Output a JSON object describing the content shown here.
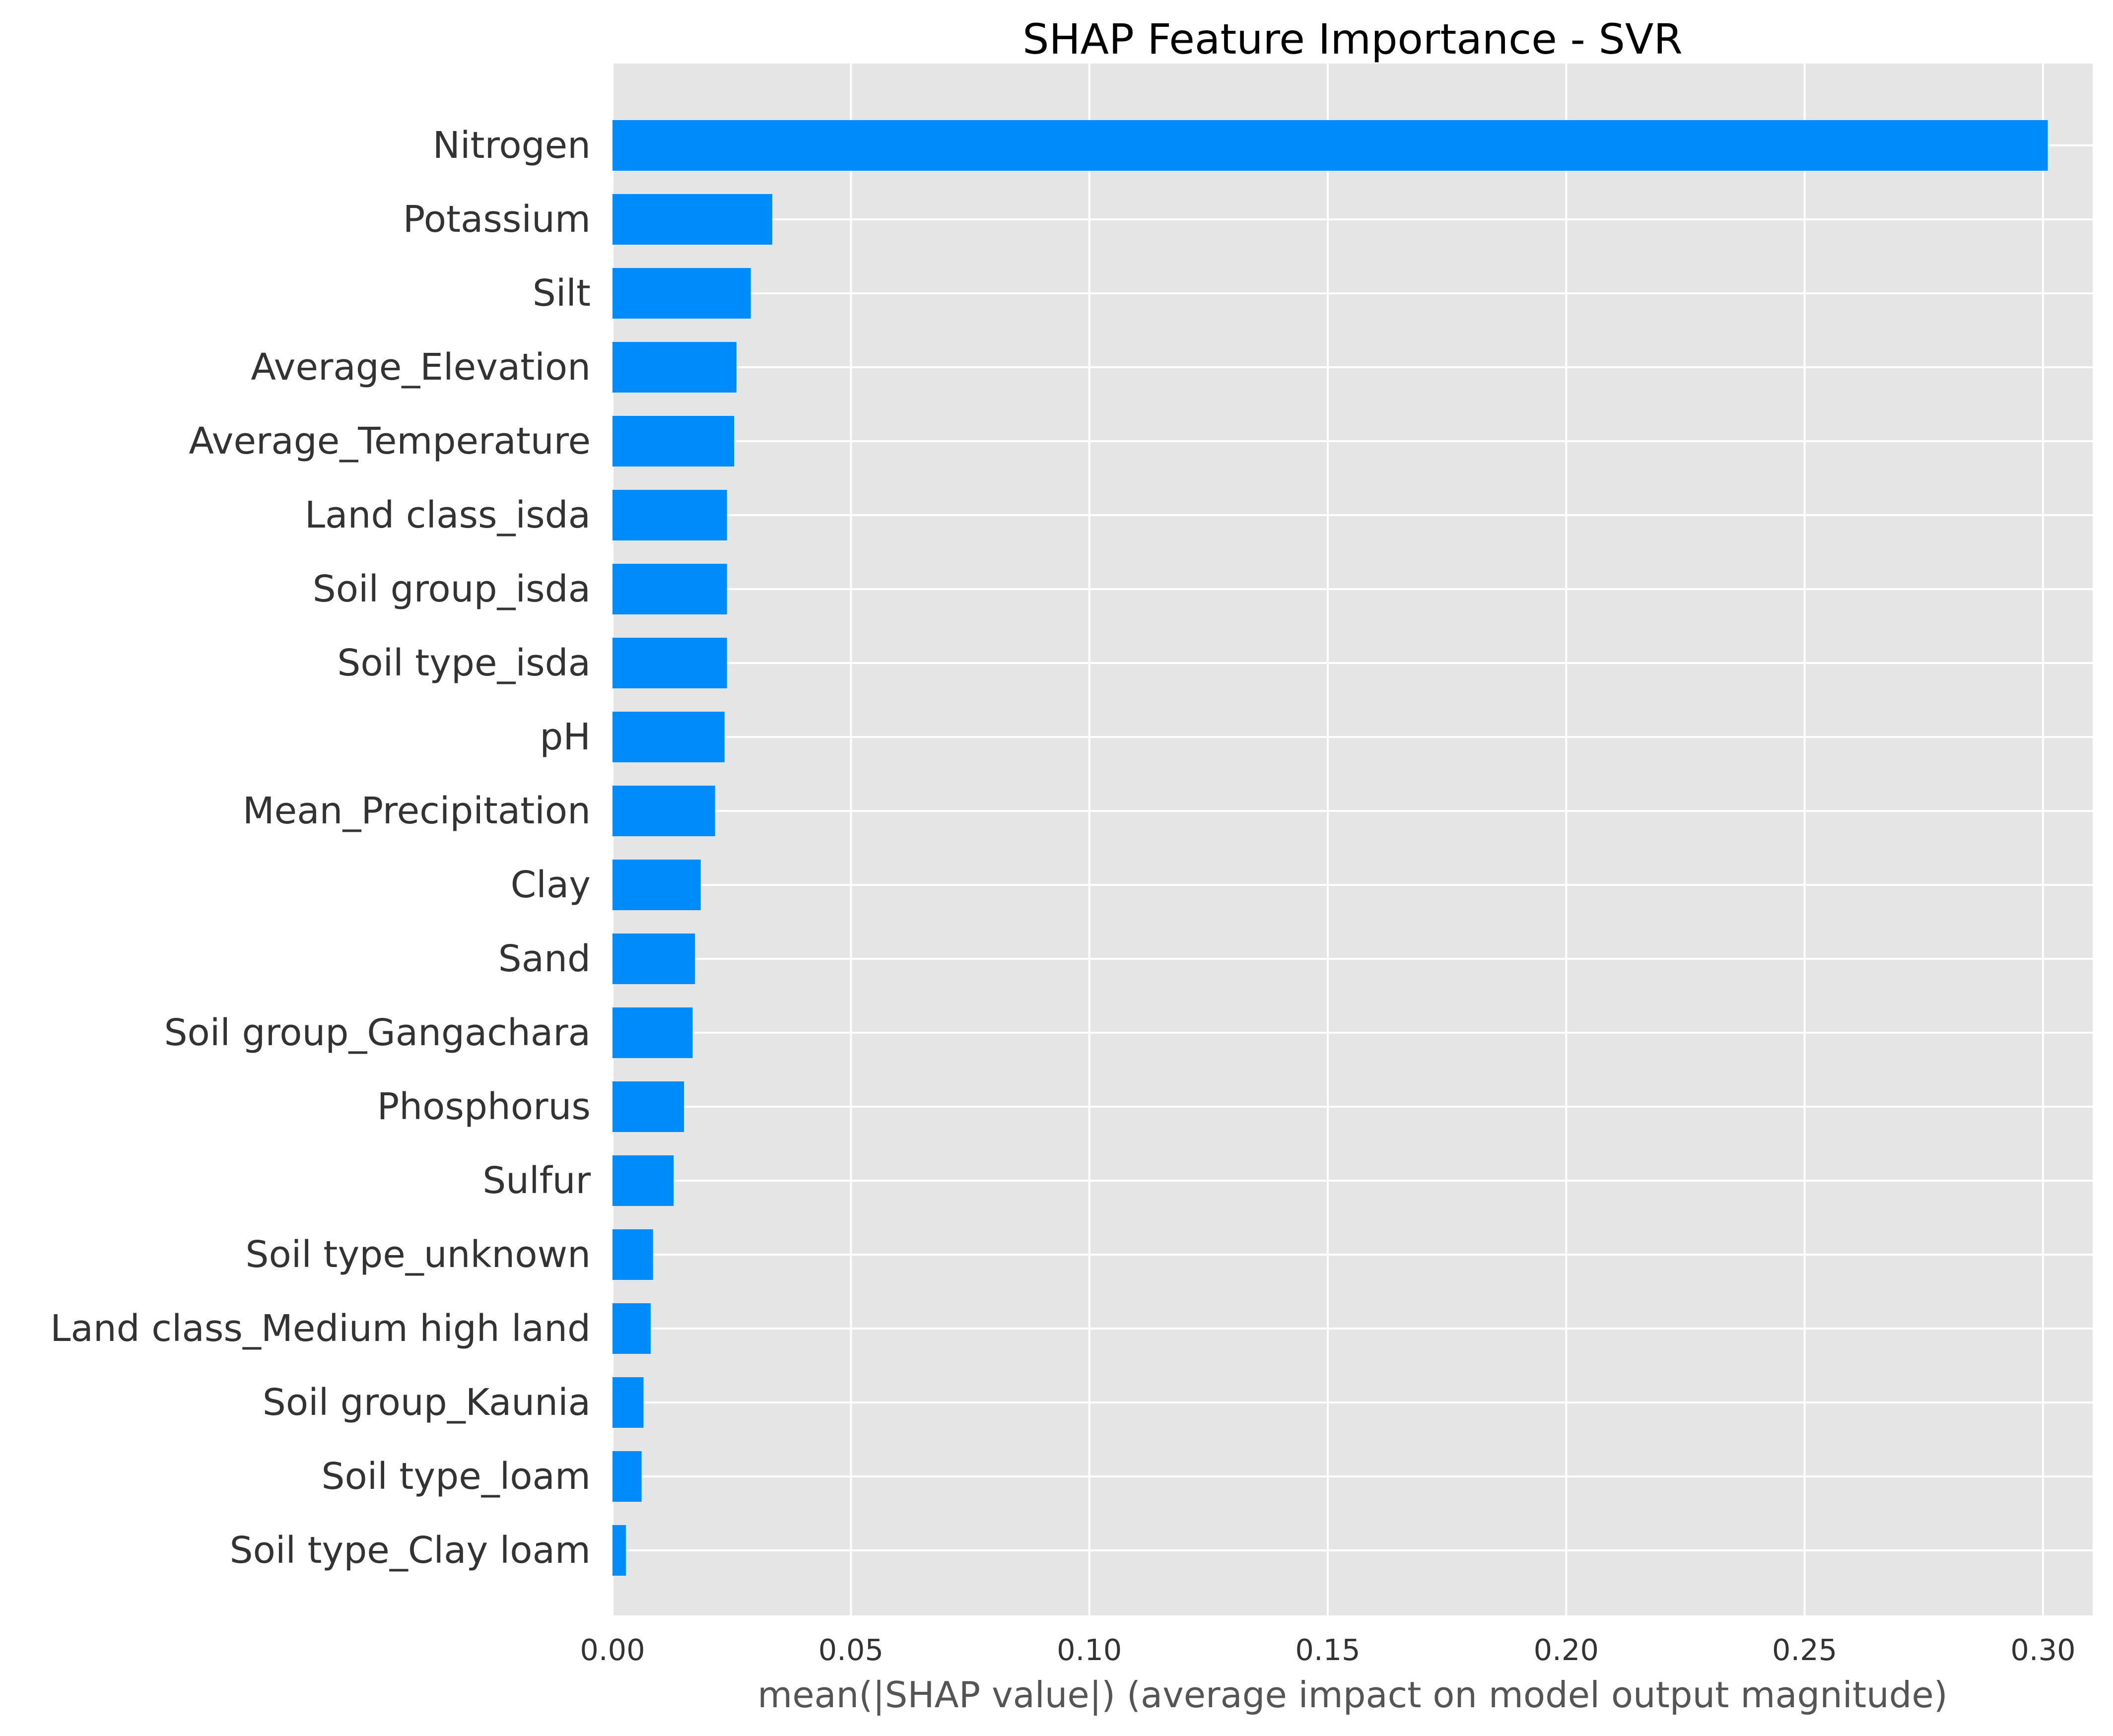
{
  "chart_data": {
    "type": "bar",
    "orientation": "horizontal",
    "title": "SHAP Feature Importance - SVR",
    "xlabel": "mean(|SHAP value|) (average impact on model output magnitude)",
    "ylabel": "",
    "xlim": [
      0,
      0.3
    ],
    "xticks": [
      "0.00",
      "0.05",
      "0.10",
      "0.15",
      "0.20",
      "0.25",
      "0.30"
    ],
    "grid": true,
    "bar_color": "#008bfb",
    "background_color": "#e5e5e5",
    "categories": [
      "Nitrogen",
      "Potassium",
      "Silt",
      "Average_Elevation",
      "Average_Temperature",
      "Land class_isda",
      "Soil group_isda",
      "Soil type_isda",
      "pH",
      "Mean_Precipitation",
      "Clay",
      "Sand",
      "Soil group_Gangachara",
      "Phosphorus",
      "Sulfur",
      "Soil type_unknown",
      "Land class_Medium high land",
      "Soil group_Kaunia",
      "Soil type_loam",
      "Soil type_Clay loam"
    ],
    "values": [
      0.301,
      0.0335,
      0.029,
      0.026,
      0.0255,
      0.024,
      0.024,
      0.024,
      0.0235,
      0.0215,
      0.0185,
      0.0173,
      0.0168,
      0.015,
      0.0128,
      0.0085,
      0.008,
      0.0065,
      0.0061,
      0.0028
    ]
  }
}
